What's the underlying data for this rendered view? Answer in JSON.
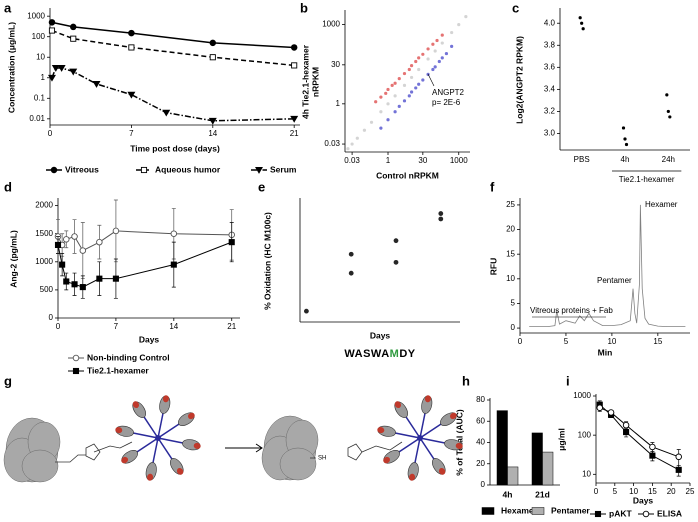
{
  "panels": [
    "a",
    "b",
    "c",
    "d",
    "e",
    "f",
    "g",
    "h",
    "i"
  ],
  "diagram": {
    "thiol_label": "SH"
  },
  "chart_data": [
    {
      "type": "line",
      "y_label": "Concentration (μg/mL)",
      "x_label": "Time post dose (days)",
      "log_y": true,
      "xlim": [
        0,
        21.5
      ],
      "xticks": [
        0,
        7,
        14,
        21
      ],
      "ylim": [
        0.005,
        2000
      ],
      "yticks": [
        0.01,
        0.1,
        1,
        10,
        100,
        1000
      ],
      "legend": "bottom",
      "series": [
        {
          "name": "Vitreous",
          "color": "#000000",
          "marker": "circle",
          "filled": true,
          "dash": "solid",
          "x": [
            0.17,
            2,
            7,
            14,
            21
          ],
          "values": [
            500,
            300,
            150,
            50,
            30
          ]
        },
        {
          "name": "Aqueous humor",
          "color": "#000000",
          "marker": "square",
          "filled": false,
          "dash": "dashed",
          "x": [
            0.17,
            2,
            7,
            14,
            21
          ],
          "values": [
            200,
            80,
            30,
            10,
            4
          ]
        },
        {
          "name": "Serum",
          "color": "#000000",
          "marker": "triangle-down",
          "filled": true,
          "dash": "dashdot",
          "x": [
            0.17,
            0.5,
            1,
            2,
            4,
            7,
            10,
            14,
            21
          ],
          "values": [
            1,
            3,
            3,
            2,
            0.5,
            0.15,
            0.02,
            0.008,
            0.01
          ]
        }
      ]
    },
    {
      "type": "scatter",
      "x_label": "Control nRPKM",
      "y_label": [
        "4h Tie2.1-hexamer",
        "nRPKM"
      ],
      "log_x": true,
      "log_y": true,
      "xlim": [
        0.015,
        3000
      ],
      "xticks": [
        0.03,
        1,
        30,
        1000
      ],
      "ylim": [
        0.015,
        3000
      ],
      "yticks": [
        0.03,
        1,
        30,
        1000
      ],
      "annotation": [
        "ANGPT2",
        "p= 2E-6"
      ],
      "series": [
        {
          "color": "#cccccc",
          "x": [
            0.02,
            0.03,
            0.05,
            0.1,
            0.2,
            0.5,
            1,
            2,
            5,
            10,
            20,
            50,
            100,
            200,
            500,
            1000,
            2000
          ],
          "values": [
            0.02,
            0.03,
            0.05,
            0.1,
            0.2,
            0.5,
            1,
            2,
            5,
            10,
            20,
            50,
            100,
            200,
            500,
            1000,
            2000
          ]
        },
        {
          "color": "#e05a5a",
          "x": [
            0.3,
            0.5,
            0.8,
            1,
            1.5,
            2,
            3,
            5,
            8,
            10,
            15,
            20,
            30,
            50,
            80,
            120,
            200
          ],
          "values": [
            1.2,
            1.8,
            2.5,
            3.5,
            5,
            6,
            9,
            14,
            20,
            28,
            40,
            55,
            75,
            120,
            180,
            250,
            400
          ]
        },
        {
          "color": "#5a5ad0",
          "x": [
            0.5,
            1,
            2,
            3,
            5,
            8,
            10,
            15,
            20,
            30,
            50,
            80,
            100,
            150,
            200,
            300,
            500
          ],
          "values": [
            0.12,
            0.25,
            0.5,
            0.8,
            1.3,
            2,
            2.8,
            4,
            5.5,
            8,
            13,
            20,
            25,
            40,
            55,
            80,
            150
          ]
        }
      ]
    },
    {
      "type": "strip",
      "y_label": "Log2(ANGPT2 RPKM)",
      "categories": [
        "PBS",
        "4h",
        "24h"
      ],
      "group_label": "Tie2.1-hexamer",
      "color": "#000000",
      "values": [
        [
          4.05,
          4.0,
          3.95
        ],
        [
          3.05,
          2.95,
          2.9
        ],
        [
          3.35,
          3.2,
          3.15
        ]
      ],
      "ylim": [
        2.85,
        4.12
      ],
      "yticks": [
        {
          "value": 3.0,
          "label": "3.0"
        },
        3.2,
        3.4,
        3.6,
        3.8,
        {
          "value": 4.0,
          "label": "4.0"
        }
      ]
    },
    {
      "type": "line",
      "y_label": "Ang-2 (pg/mL)",
      "x_label": "Days",
      "xlim": [
        0,
        22
      ],
      "xticks": [
        0,
        7,
        14,
        21
      ],
      "ylim": [
        0,
        2100
      ],
      "yticks": [
        0,
        500,
        1000,
        1500,
        2000
      ],
      "legend": "bottom",
      "series": [
        {
          "name": "Non-binding Control",
          "color": "#555555",
          "marker": "circle",
          "filled": false,
          "dash": "solid",
          "x": [
            0,
            0.5,
            1,
            2,
            3,
            5,
            7,
            14,
            21
          ],
          "values": [
            1450,
            1300,
            1400,
            1450,
            1200,
            1350,
            1550,
            1500,
            1480
          ],
          "errors": [
            300,
            200,
            150,
            300,
            500,
            300,
            550,
            450,
            450
          ]
        },
        {
          "name": "Tie2.1-hexamer",
          "color": "#000000",
          "marker": "square",
          "filled": true,
          "dash": "solid",
          "x": [
            0,
            0.5,
            1,
            2,
            3,
            5,
            7,
            14,
            21
          ],
          "values": [
            1300,
            950,
            650,
            600,
            550,
            700,
            700,
            950,
            1350
          ],
          "errors": [
            150,
            200,
            150,
            200,
            200,
            300,
            350,
            400,
            350
          ]
        }
      ]
    },
    {
      "type": "scatter",
      "y_label": "% Oxidation (HC M100c)",
      "x_label": "Days",
      "xlim": [
        0,
        25
      ],
      "ylim": [
        0,
        45
      ],
      "sequence": [
        "WASWA",
        "M",
        "DY"
      ],
      "sequence_colors": [
        "#000000",
        "#2e9a3e",
        "#000000"
      ],
      "series": [
        {
          "color": "#000000",
          "x": [
            1,
            8,
            8,
            15,
            15,
            22,
            22
          ],
          "values": [
            4,
            25,
            18,
            30,
            22,
            40,
            38
          ]
        }
      ]
    },
    {
      "type": "line",
      "y_label": "RFU",
      "x_label": "Min",
      "xlim": [
        0,
        18.5
      ],
      "xticks": [
        0,
        5,
        10,
        15
      ],
      "ylim": [
        -1,
        26
      ],
      "yticks": [
        0,
        5,
        10,
        15,
        20,
        25
      ],
      "annotations": [
        "Hexamer",
        "Pentamer",
        "Vitreous proteins + Fab"
      ],
      "x": [
        1,
        2,
        3,
        3.8,
        4,
        4.3,
        5,
        6,
        6.5,
        7,
        7.5,
        8,
        9,
        10,
        11,
        12,
        12.3,
        12.5,
        12.7,
        13,
        13.1,
        13.3,
        13.6,
        14,
        15,
        16,
        17,
        18
      ],
      "series": [
        {
          "color": "#808080",
          "dash": "solid",
          "values": [
            0.3,
            0.3,
            0.3,
            0.5,
            3.5,
            0.8,
            1.5,
            1,
            2.5,
            1.5,
            3,
            1.5,
            0.5,
            0.5,
            0.7,
            1.5,
            8,
            3,
            1,
            9,
            25,
            8,
            2,
            0.8,
            0.4,
            0.3,
            0.3,
            0.3
          ]
        }
      ]
    },
    {
      "type": "bar",
      "y_label": "% of Total (AUC)",
      "categories": [
        "4h",
        "21d"
      ],
      "ylim": [
        0,
        80
      ],
      "yticks": [
        0,
        20,
        40,
        60,
        80
      ],
      "legend": "bottom",
      "series": [
        {
          "name": "Hexamer",
          "color": "#000000",
          "values": [
            70,
            49
          ]
        },
        {
          "name": "Pentamer",
          "color": "#b0b0b0",
          "values": [
            17,
            31
          ]
        }
      ]
    },
    {
      "type": "line",
      "y_label": "μg/ml",
      "x_label": "Days",
      "log_y": true,
      "xlim": [
        0,
        25
      ],
      "xticks": [
        0,
        5,
        10,
        15,
        20,
        25
      ],
      "ylim": [
        6,
        1000
      ],
      "yticks": [
        10,
        100,
        1000
      ],
      "legend": "bottom",
      "series": [
        {
          "name": "pAKT",
          "color": "#000000",
          "marker": "square",
          "filled": true,
          "dash": "solid",
          "x": [
            1,
            4,
            8,
            15,
            22
          ],
          "values": [
            600,
            330,
            120,
            30,
            13
          ],
          "errors": [
            150,
            50,
            30,
            8,
            4
          ]
        },
        {
          "name": "ELISA",
          "color": "#000000",
          "marker": "circle",
          "filled": false,
          "dash": "solid",
          "x": [
            1,
            4,
            8,
            15,
            22
          ],
          "values": [
            500,
            380,
            180,
            50,
            28
          ],
          "errors": [
            100,
            40,
            40,
            15,
            15
          ]
        }
      ]
    }
  ]
}
